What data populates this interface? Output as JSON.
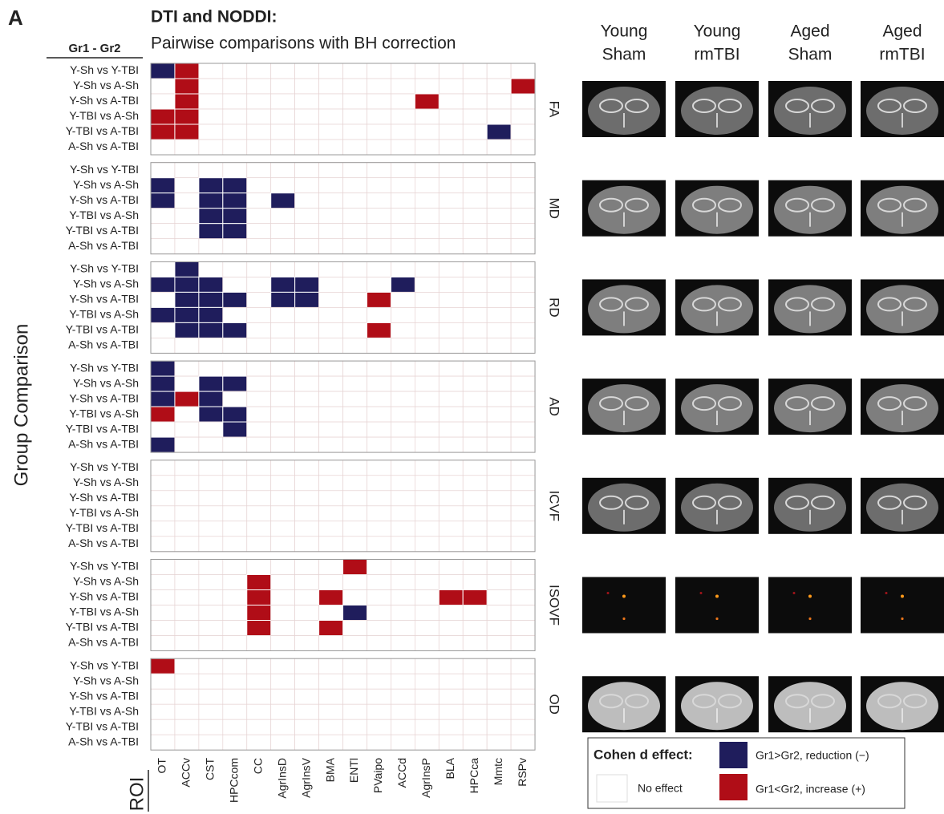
{
  "panel_letter": "A",
  "title": "DTI and NODDI:",
  "subtitle": "Pairwise comparisons with BH correction",
  "row_header": "Gr1 - Gr2",
  "y_axis_label": "Group Comparison",
  "x_axis_label": "ROI",
  "rows": [
    "Y-Sh vs Y-TBI",
    "Y-Sh vs A-Sh",
    "Y-Sh vs A-TBI",
    "Y-TBI vs A-Sh",
    "Y-TBI vs A-TBI",
    "A-Sh vs A-TBI"
  ],
  "columns": [
    "OT",
    "ACCv",
    "CST",
    "HPCcom",
    "CC",
    "AgrInsD",
    "AgrInsV",
    "BMA",
    "ENTl",
    "PVaipo",
    "ACCd",
    "AgrInsP",
    "BLA",
    "HPCca",
    "Mmtc",
    "RSPv"
  ],
  "image_headers": [
    [
      "Young",
      "Sham"
    ],
    [
      "Young",
      "rmTBI"
    ],
    [
      "Aged",
      "Sham"
    ],
    [
      "Aged",
      "rmTBI"
    ]
  ],
  "panels": [
    {
      "metric": "FA",
      "cells": [
        [
          -1,
          1,
          0,
          0,
          0,
          0,
          0,
          0,
          0,
          0,
          0,
          0,
          0,
          0,
          0,
          0
        ],
        [
          0,
          1,
          0,
          0,
          0,
          0,
          0,
          0,
          0,
          0,
          0,
          0,
          0,
          0,
          0,
          1
        ],
        [
          0,
          1,
          0,
          0,
          0,
          0,
          0,
          0,
          0,
          0,
          0,
          1,
          0,
          0,
          0,
          0
        ],
        [
          1,
          1,
          0,
          0,
          0,
          0,
          0,
          0,
          0,
          0,
          0,
          0,
          0,
          0,
          0,
          0
        ],
        [
          1,
          1,
          0,
          0,
          0,
          0,
          0,
          0,
          0,
          0,
          0,
          0,
          0,
          0,
          -1,
          0
        ],
        [
          0,
          0,
          0,
          0,
          0,
          0,
          0,
          0,
          0,
          0,
          0,
          0,
          0,
          0,
          0,
          0
        ]
      ]
    },
    {
      "metric": "MD",
      "cells": [
        [
          0,
          0,
          0,
          0,
          0,
          0,
          0,
          0,
          0,
          0,
          0,
          0,
          0,
          0,
          0,
          0
        ],
        [
          -1,
          0,
          -1,
          -1,
          0,
          0,
          0,
          0,
          0,
          0,
          0,
          0,
          0,
          0,
          0,
          0
        ],
        [
          -1,
          0,
          -1,
          -1,
          0,
          -1,
          0,
          0,
          0,
          0,
          0,
          0,
          0,
          0,
          0,
          0
        ],
        [
          0,
          0,
          -1,
          -1,
          0,
          0,
          0,
          0,
          0,
          0,
          0,
          0,
          0,
          0,
          0,
          0
        ],
        [
          0,
          0,
          -1,
          -1,
          0,
          0,
          0,
          0,
          0,
          0,
          0,
          0,
          0,
          0,
          0,
          0
        ],
        [
          0,
          0,
          0,
          0,
          0,
          0,
          0,
          0,
          0,
          0,
          0,
          0,
          0,
          0,
          0,
          0
        ]
      ]
    },
    {
      "metric": "RD",
      "cells": [
        [
          0,
          -1,
          0,
          0,
          0,
          0,
          0,
          0,
          0,
          0,
          0,
          0,
          0,
          0,
          0,
          0
        ],
        [
          -1,
          -1,
          -1,
          0,
          0,
          -1,
          -1,
          0,
          0,
          0,
          -1,
          0,
          0,
          0,
          0,
          0
        ],
        [
          0,
          -1,
          -1,
          -1,
          0,
          -1,
          -1,
          0,
          0,
          1,
          0,
          0,
          0,
          0,
          0,
          0
        ],
        [
          -1,
          -1,
          -1,
          0,
          0,
          0,
          0,
          0,
          0,
          0,
          0,
          0,
          0,
          0,
          0,
          0
        ],
        [
          0,
          -1,
          -1,
          -1,
          0,
          0,
          0,
          0,
          0,
          1,
          0,
          0,
          0,
          0,
          0,
          0
        ],
        [
          0,
          0,
          0,
          0,
          0,
          0,
          0,
          0,
          0,
          0,
          0,
          0,
          0,
          0,
          0,
          0
        ]
      ]
    },
    {
      "metric": "AD",
      "cells": [
        [
          -1,
          0,
          0,
          0,
          0,
          0,
          0,
          0,
          0,
          0,
          0,
          0,
          0,
          0,
          0,
          0
        ],
        [
          -1,
          0,
          -1,
          -1,
          0,
          0,
          0,
          0,
          0,
          0,
          0,
          0,
          0,
          0,
          0,
          0
        ],
        [
          -1,
          1,
          -1,
          0,
          0,
          0,
          0,
          0,
          0,
          0,
          0,
          0,
          0,
          0,
          0,
          0
        ],
        [
          1,
          0,
          -1,
          -1,
          0,
          0,
          0,
          0,
          0,
          0,
          0,
          0,
          0,
          0,
          0,
          0
        ],
        [
          0,
          0,
          0,
          -1,
          0,
          0,
          0,
          0,
          0,
          0,
          0,
          0,
          0,
          0,
          0,
          0
        ],
        [
          -1,
          0,
          0,
          0,
          0,
          0,
          0,
          0,
          0,
          0,
          0,
          0,
          0,
          0,
          0,
          0
        ]
      ]
    },
    {
      "metric": "ICVF",
      "cells": [
        [
          0,
          0,
          0,
          0,
          0,
          0,
          0,
          0,
          0,
          0,
          0,
          0,
          0,
          0,
          0,
          0
        ],
        [
          0,
          0,
          0,
          0,
          0,
          0,
          0,
          0,
          0,
          0,
          0,
          0,
          0,
          0,
          0,
          0
        ],
        [
          0,
          0,
          0,
          0,
          0,
          0,
          0,
          0,
          0,
          0,
          0,
          0,
          0,
          0,
          0,
          0
        ],
        [
          0,
          0,
          0,
          0,
          0,
          0,
          0,
          0,
          0,
          0,
          0,
          0,
          0,
          0,
          0,
          0
        ],
        [
          0,
          0,
          0,
          0,
          0,
          0,
          0,
          0,
          0,
          0,
          0,
          0,
          0,
          0,
          0,
          0
        ],
        [
          0,
          0,
          0,
          0,
          0,
          0,
          0,
          0,
          0,
          0,
          0,
          0,
          0,
          0,
          0,
          0
        ]
      ]
    },
    {
      "metric": "ISOVF",
      "cells": [
        [
          0,
          0,
          0,
          0,
          0,
          0,
          0,
          0,
          1,
          0,
          0,
          0,
          0,
          0,
          0,
          0
        ],
        [
          0,
          0,
          0,
          0,
          1,
          0,
          0,
          0,
          0,
          0,
          0,
          0,
          0,
          0,
          0,
          0
        ],
        [
          0,
          0,
          0,
          0,
          1,
          0,
          0,
          1,
          0,
          0,
          0,
          0,
          1,
          1,
          0,
          0
        ],
        [
          0,
          0,
          0,
          0,
          1,
          0,
          0,
          0,
          -1,
          0,
          0,
          0,
          0,
          0,
          0,
          0
        ],
        [
          0,
          0,
          0,
          0,
          1,
          0,
          0,
          1,
          0,
          0,
          0,
          0,
          0,
          0,
          0,
          0
        ],
        [
          0,
          0,
          0,
          0,
          0,
          0,
          0,
          0,
          0,
          0,
          0,
          0,
          0,
          0,
          0,
          0
        ]
      ]
    },
    {
      "metric": "OD",
      "cells": [
        [
          1,
          0,
          0,
          0,
          0,
          0,
          0,
          0,
          0,
          0,
          0,
          0,
          0,
          0,
          0,
          0
        ],
        [
          0,
          0,
          0,
          0,
          0,
          0,
          0,
          0,
          0,
          0,
          0,
          0,
          0,
          0,
          0,
          0
        ],
        [
          0,
          0,
          0,
          0,
          0,
          0,
          0,
          0,
          0,
          0,
          0,
          0,
          0,
          0,
          0,
          0
        ],
        [
          0,
          0,
          0,
          0,
          0,
          0,
          0,
          0,
          0,
          0,
          0,
          0,
          0,
          0,
          0,
          0
        ],
        [
          0,
          0,
          0,
          0,
          0,
          0,
          0,
          0,
          0,
          0,
          0,
          0,
          0,
          0,
          0,
          0
        ],
        [
          0,
          0,
          0,
          0,
          0,
          0,
          0,
          0,
          0,
          0,
          0,
          0,
          0,
          0,
          0,
          0
        ]
      ]
    }
  ],
  "legend": {
    "title": "Cohen d effect:",
    "negative": "Gr1>Gr2, reduction (−)",
    "positive": "Gr1<Gr2, increase (+)",
    "none": "No effect",
    "negative_color": "#1f1d5c",
    "positive_color": "#b00d17"
  }
}
